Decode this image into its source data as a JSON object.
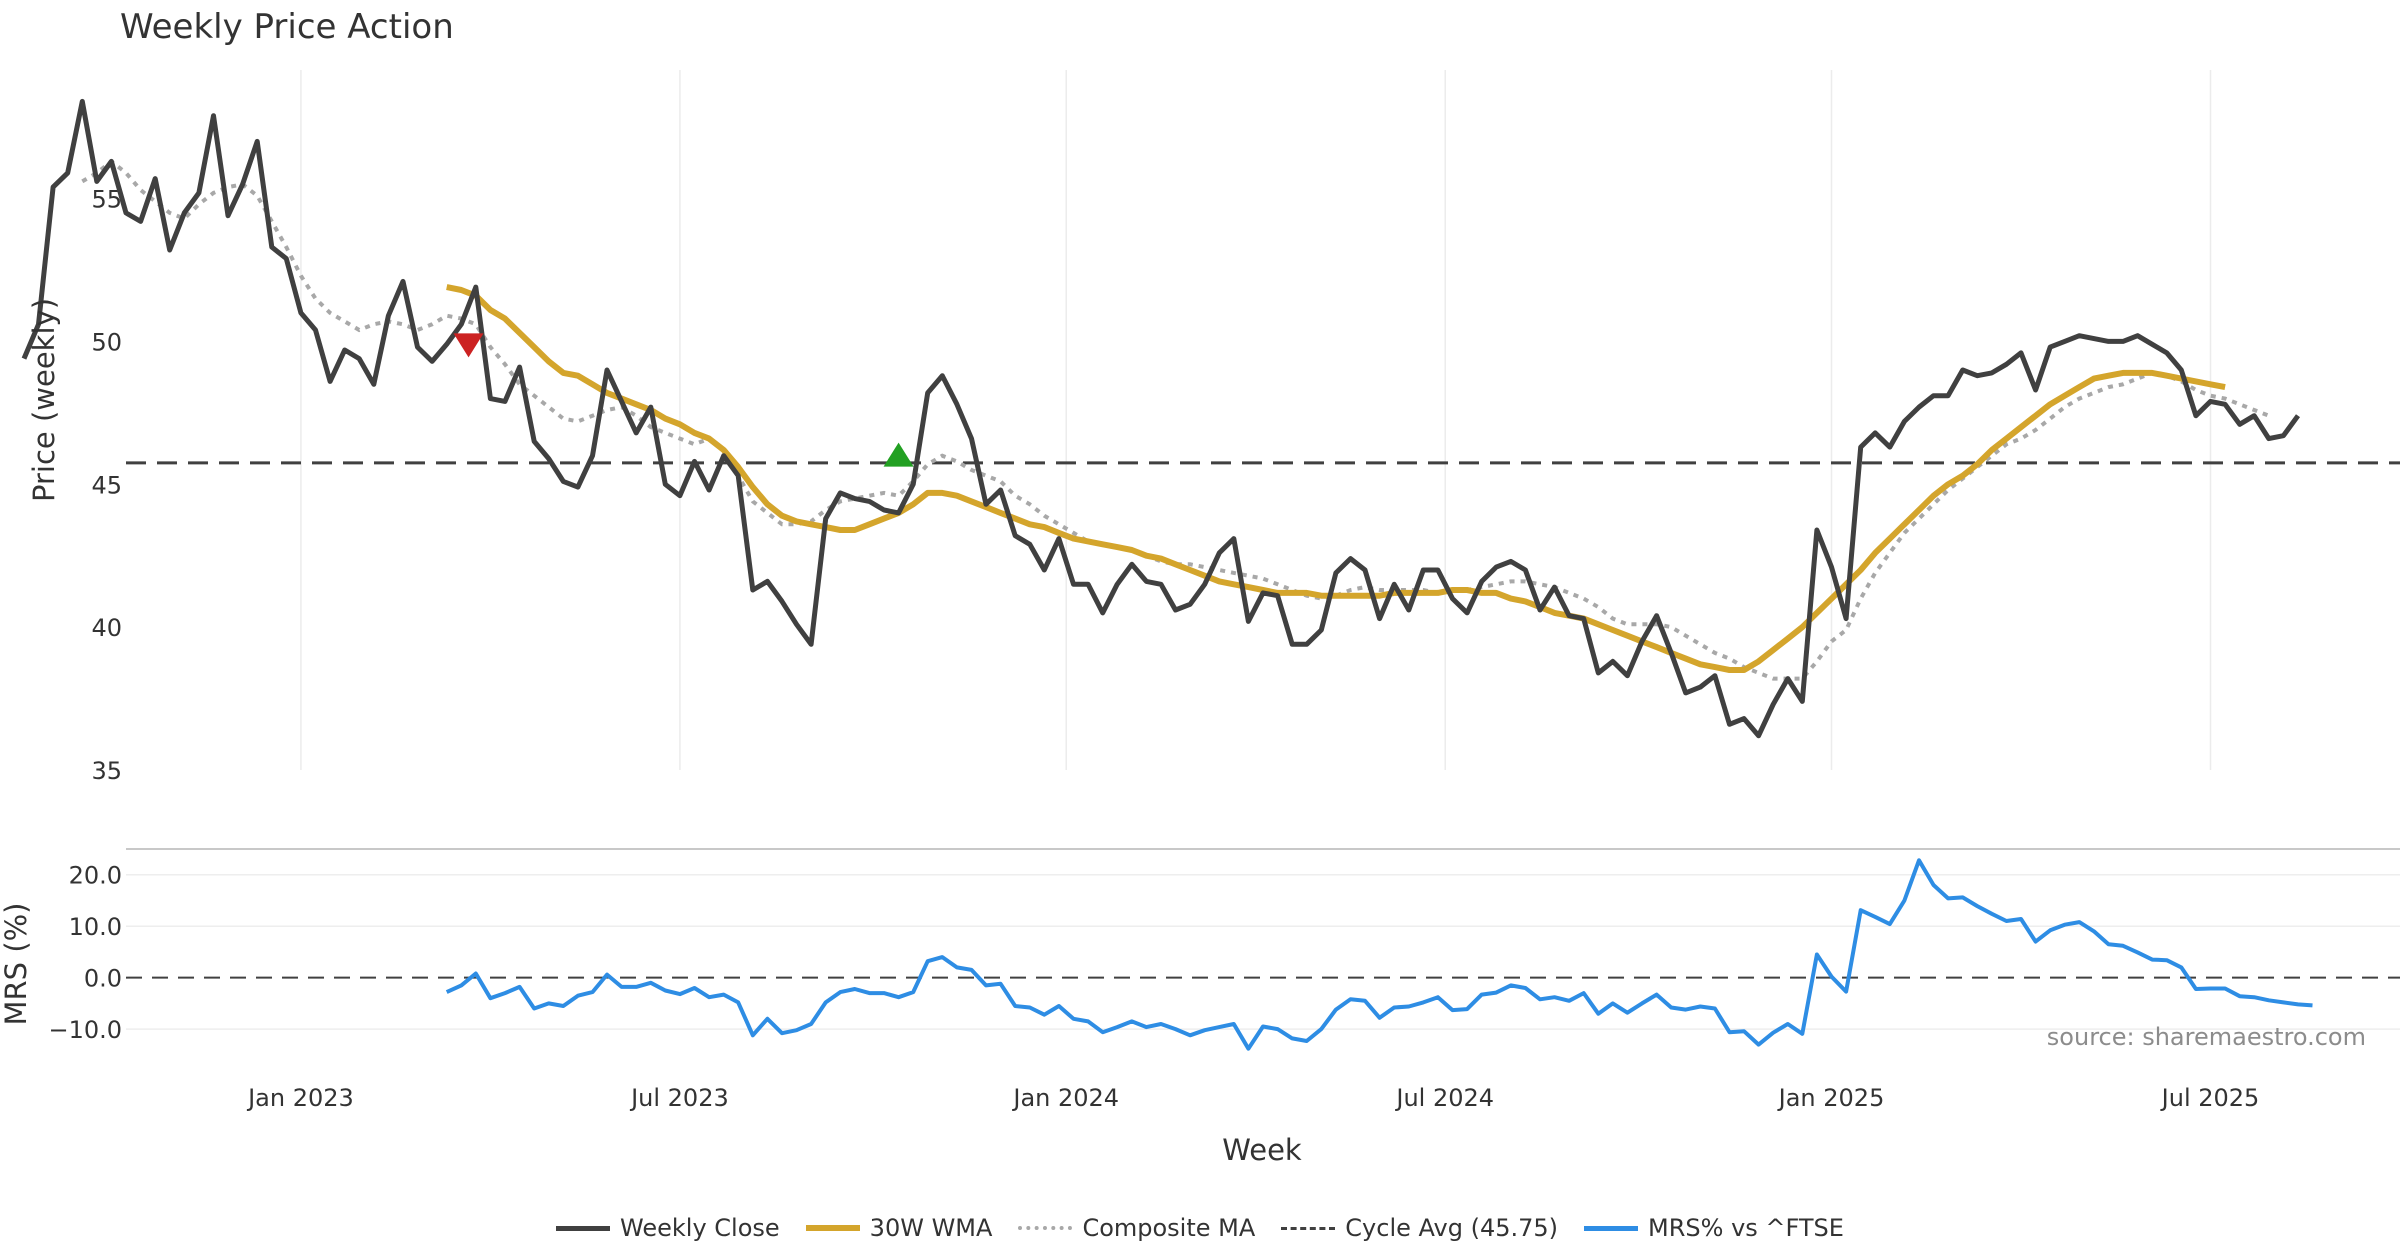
{
  "chart_data": {
    "type": "line",
    "title": "Weekly Price Action",
    "xlabel": "Week",
    "ylabel": "Price (weekly)",
    "ylim": [
      35,
      59.5
    ],
    "yticks": [
      "35",
      "40",
      "45",
      "50",
      "55"
    ],
    "x_ticks": [
      {
        "label": "Jan 2023",
        "week": 20
      },
      {
        "label": "Jul 2023",
        "week": 46
      },
      {
        "label": "Jan 2024",
        "week": 72.5
      },
      {
        "label": "Jul 2024",
        "week": 98.5
      },
      {
        "label": "Jan 2025",
        "week": 125
      },
      {
        "label": "Jul 2025",
        "week": 151
      }
    ],
    "x_range": [
      8,
      164
    ],
    "weekly_close": [
      49.4,
      50.6,
      55.4,
      55.9,
      58.4,
      55.6,
      56.3,
      54.5,
      54.2,
      55.7,
      53.2,
      54.5,
      55.2,
      57.9,
      54.4,
      55.5,
      57.0,
      53.3,
      52.9,
      51.0,
      50.4,
      48.6,
      49.7,
      49.4,
      48.5,
      50.9,
      52.1,
      49.8,
      49.3,
      49.9,
      50.6,
      51.9,
      48.0,
      47.9,
      49.1,
      46.5,
      45.9,
      45.1,
      44.9,
      46.0,
      49.0,
      47.9,
      46.8,
      47.7,
      45.0,
      44.6,
      45.8,
      44.8,
      46.0,
      45.3,
      41.3,
      41.6,
      40.9,
      40.1,
      39.4,
      43.8,
      44.7,
      44.5,
      44.4,
      44.1,
      44.0,
      45.0,
      48.2,
      48.8,
      47.8,
      46.6,
      44.3,
      44.8,
      43.2,
      42.9,
      42.0,
      43.1,
      41.5,
      41.5,
      40.5,
      41.5,
      42.2,
      41.6,
      41.5,
      40.6,
      40.8,
      41.5,
      42.6,
      43.1,
      40.2,
      41.2,
      41.1,
      39.4,
      39.4,
      39.9,
      41.9,
      42.4,
      42.0,
      40.3,
      41.5,
      40.6,
      42.0,
      42.0,
      41.0,
      40.5,
      41.6,
      42.1,
      42.3,
      42.0,
      40.6,
      41.4,
      40.4,
      40.3,
      38.4,
      38.8,
      38.3,
      39.5,
      40.4,
      39.1,
      37.7,
      37.9,
      38.3,
      36.6,
      36.8,
      36.2,
      37.3,
      38.2,
      37.4,
      43.4,
      42.1,
      40.3,
      46.3,
      46.8,
      46.3,
      47.2,
      47.7,
      48.1,
      48.1,
      49.0,
      48.8,
      48.9,
      49.2,
      49.6,
      48.3,
      49.8,
      50.0,
      50.2,
      50.1,
      50.0,
      50.0,
      50.2,
      49.9,
      49.6,
      49.0,
      47.4,
      47.9,
      47.8,
      47.1,
      47.4,
      46.6,
      46.7,
      47.4
    ],
    "wma30": [
      null,
      null,
      null,
      null,
      null,
      null,
      null,
      null,
      null,
      null,
      null,
      null,
      null,
      null,
      null,
      null,
      null,
      null,
      null,
      null,
      null,
      null,
      null,
      null,
      null,
      null,
      null,
      null,
      null,
      51.9,
      51.8,
      51.6,
      51.1,
      50.8,
      50.3,
      49.8,
      49.3,
      48.9,
      48.8,
      48.5,
      48.2,
      48.0,
      47.8,
      47.6,
      47.3,
      47.1,
      46.8,
      46.6,
      46.2,
      45.6,
      44.9,
      44.3,
      43.9,
      43.7,
      43.6,
      43.5,
      43.4,
      43.4,
      43.6,
      43.8,
      44.0,
      44.3,
      44.7,
      44.7,
      44.6,
      44.4,
      44.2,
      44.0,
      43.8,
      43.6,
      43.5,
      43.3,
      43.1,
      43.0,
      42.9,
      42.8,
      42.7,
      42.5,
      42.4,
      42.2,
      42.0,
      41.8,
      41.6,
      41.5,
      41.4,
      41.3,
      41.2,
      41.2,
      41.2,
      41.1,
      41.1,
      41.1,
      41.1,
      41.1,
      41.2,
      41.2,
      41.2,
      41.2,
      41.3,
      41.3,
      41.2,
      41.2,
      41.0,
      40.9,
      40.7,
      40.5,
      40.4,
      40.3,
      40.1,
      39.9,
      39.7,
      39.5,
      39.3,
      39.1,
      38.9,
      38.7,
      38.6,
      38.5,
      38.5,
      38.8,
      39.2,
      39.6,
      40.0,
      40.5,
      41.0,
      41.5,
      42.0,
      42.6,
      43.1,
      43.6,
      44.1,
      44.6,
      45.0,
      45.3,
      45.7,
      46.2,
      46.6,
      47.0,
      47.4,
      47.8,
      48.1,
      48.4,
      48.7,
      48.8,
      48.9,
      48.9,
      48.9,
      48.8,
      48.7,
      48.6,
      48.5,
      48.4
    ],
    "composite_ma": [
      null,
      null,
      null,
      null,
      55.6,
      55.9,
      56.3,
      55.9,
      55.3,
      54.9,
      54.5,
      54.3,
      54.8,
      55.2,
      55.4,
      55.5,
      55.1,
      54.2,
      53.3,
      52.3,
      51.5,
      51.0,
      50.7,
      50.4,
      50.6,
      50.7,
      50.6,
      50.4,
      50.6,
      50.9,
      50.8,
      50.6,
      49.8,
      49.2,
      48.5,
      48.1,
      47.7,
      47.3,
      47.2,
      47.4,
      47.6,
      47.7,
      47.4,
      47.0,
      46.8,
      46.6,
      46.4,
      46.6,
      46.2,
      45.3,
      44.4,
      44.0,
      43.6,
      43.6,
      43.7,
      44.1,
      44.4,
      44.5,
      44.6,
      44.7,
      44.6,
      45.1,
      45.7,
      46.0,
      45.8,
      45.5,
      45.3,
      45.1,
      44.6,
      44.3,
      43.9,
      43.6,
      43.3,
      43.0,
      42.9,
      42.8,
      42.7,
      42.5,
      42.3,
      42.2,
      42.2,
      42.1,
      42.0,
      41.9,
      41.8,
      41.7,
      41.5,
      41.3,
      41.1,
      41.0,
      41.1,
      41.3,
      41.4,
      41.3,
      41.3,
      41.3,
      41.3,
      41.2,
      41.3,
      41.3,
      41.4,
      41.5,
      41.6,
      41.6,
      41.5,
      41.4,
      41.2,
      41.0,
      40.7,
      40.3,
      40.1,
      40.1,
      40.1,
      40.0,
      39.7,
      39.4,
      39.1,
      38.9,
      38.6,
      38.4,
      38.2,
      38.2,
      38.2,
      38.8,
      39.5,
      39.9,
      41.0,
      41.9,
      42.6,
      43.3,
      43.8,
      44.3,
      44.8,
      45.2,
      45.6,
      46.0,
      46.4,
      46.6,
      46.9,
      47.3,
      47.7,
      48.0,
      48.2,
      48.4,
      48.5,
      48.7,
      48.9,
      48.8,
      48.6,
      48.3,
      48.1,
      48.0,
      47.8,
      47.6,
      47.4
    ],
    "cycle_avg": 45.75,
    "signals": [
      {
        "type": "sell",
        "week": 31.5,
        "value": 50.0
      },
      {
        "type": "buy",
        "week": 61,
        "value": 45.9
      }
    ],
    "mrs_panel": {
      "ylabel": "MRS (%)",
      "yticks": [
        "20.0",
        "10.0",
        "0.0",
        "−10.0"
      ],
      "ylim": [
        -16,
        25
      ],
      "values": [
        null,
        null,
        null,
        null,
        null,
        null,
        null,
        null,
        null,
        null,
        null,
        null,
        null,
        null,
        null,
        null,
        null,
        null,
        null,
        null,
        null,
        null,
        null,
        null,
        null,
        null,
        null,
        null,
        null,
        -2.8,
        -1.5,
        0.8,
        -4.0,
        -3.0,
        -1.8,
        -6.0,
        -5.0,
        -5.5,
        -3.5,
        -2.8,
        0.6,
        -1.8,
        -1.8,
        -1.0,
        -2.5,
        -3.2,
        -2.0,
        -3.8,
        -3.3,
        -4.8,
        -11.2,
        -8.0,
        -10.8,
        -10.2,
        -9.0,
        -4.8,
        -2.8,
        -2.2,
        -3.0,
        -3.0,
        -3.8,
        -2.8,
        3.2,
        4.0,
        2.0,
        1.5,
        -1.5,
        -1.2,
        -5.5,
        -5.8,
        -7.2,
        -5.5,
        -8.0,
        -8.5,
        -10.6,
        -9.6,
        -8.5,
        -9.6,
        -9.0,
        -10.0,
        -11.2,
        -10.2,
        -9.6,
        -9.0,
        -13.8,
        -9.5,
        -10.0,
        -11.8,
        -12.3,
        -10.0,
        -6.2,
        -4.2,
        -4.5,
        -7.8,
        -5.8,
        -5.6,
        -4.8,
        -3.8,
        -6.3,
        -6.1,
        -3.3,
        -2.9,
        -1.5,
        -2.0,
        -4.2,
        -3.8,
        -4.5,
        -3.0,
        -7.0,
        -5.0,
        -6.8,
        -5.0,
        -3.3,
        -5.8,
        -6.2,
        -5.6,
        -6.0,
        -10.6,
        -10.4,
        -13.0,
        -10.7,
        -9.0,
        -10.9,
        4.5,
        0.2,
        -2.7,
        13.1,
        11.8,
        10.4,
        15.0,
        22.8,
        18.0,
        15.4,
        15.6,
        13.9,
        12.4,
        11.0,
        11.4,
        7.0,
        9.2,
        10.3,
        10.8,
        9.0,
        6.5,
        6.2,
        4.9,
        3.5,
        3.4,
        2.0,
        -2.2,
        -2.1,
        -2.1,
        -3.6,
        -3.8,
        -4.4,
        -4.8,
        -5.2,
        -5.4
      ]
    },
    "series": [
      {
        "name": "Weekly Close",
        "color": "#404040"
      },
      {
        "name": "30W WMA",
        "color": "#d4a52c"
      },
      {
        "name": "Composite MA",
        "color": "#a8a8a8"
      },
      {
        "name": "Cycle Avg (45.75)",
        "color": "#404040"
      },
      {
        "name": "MRS% vs ^FTSE",
        "color": "#2e8de4"
      }
    ],
    "source": "source: sharemaestro.com"
  }
}
